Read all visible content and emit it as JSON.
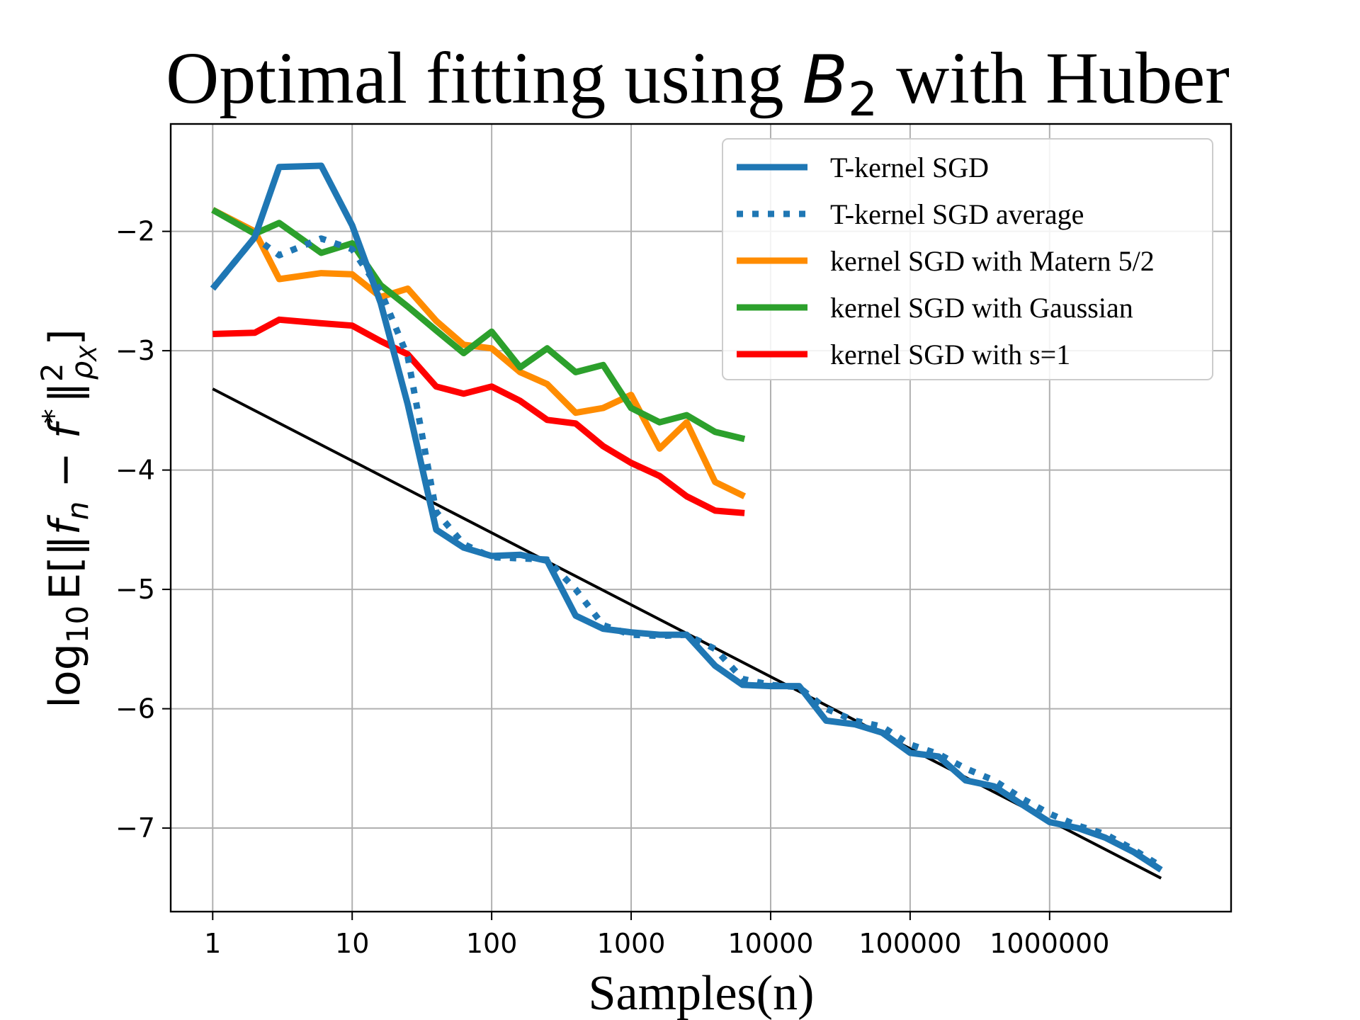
{
  "chart_data": {
    "type": "line",
    "title": {
      "prefix": "Optimal fitting using ",
      "math": "B",
      "math_subscript": "2",
      "suffix": " with Huber"
    },
    "xlabel": "Samples(n)",
    "ylabel": "log10 E[‖f_n − f*‖²_ρX]",
    "ylabel_parts": {
      "log": "log",
      "log_sub": "10",
      "E": "E",
      "bracket_open": "[",
      "norm_open": "‖",
      "f": "f",
      "f_sub": "n",
      "minus": " − ",
      "fstar": "f",
      "star": "*",
      "norm_close": "‖",
      "sq": "2",
      "rho": "ρ",
      "rho_sub": "X",
      "bracket_close": "]"
    },
    "x_scale": "log",
    "xlim": [
      0.5,
      20000000
    ],
    "ylim": [
      -7.7,
      -1.1
    ],
    "grid": true,
    "legend": "top-right",
    "x_ticks": [
      {
        "value": 1,
        "label": "1"
      },
      {
        "value": 10,
        "label": "10"
      },
      {
        "value": 100,
        "label": "100"
      },
      {
        "value": 1000,
        "label": "1000"
      },
      {
        "value": 10000,
        "label": "10000"
      },
      {
        "value": 100000,
        "label": "100000"
      },
      {
        "value": 1000000,
        "label": "1000000"
      }
    ],
    "y_ticks": [
      {
        "value": -2,
        "label": "−2"
      },
      {
        "value": -3,
        "label": "−3"
      },
      {
        "value": -4,
        "label": "−4"
      },
      {
        "value": -5,
        "label": "−5"
      },
      {
        "value": -6,
        "label": "−6"
      },
      {
        "value": -7,
        "label": "−7"
      }
    ],
    "series": [
      {
        "name": "T-kernel SGD",
        "color": "#1f77b4",
        "style": "solid",
        "points": [
          [
            1,
            -2.48
          ],
          [
            2,
            -2.05
          ],
          [
            3,
            -1.46
          ],
          [
            6,
            -1.45
          ],
          [
            10,
            -1.95
          ],
          [
            16,
            -2.6
          ],
          [
            25,
            -3.45
          ],
          [
            40,
            -4.5
          ],
          [
            63,
            -4.65
          ],
          [
            100,
            -4.72
          ],
          [
            160,
            -4.71
          ],
          [
            250,
            -4.76
          ],
          [
            400,
            -5.22
          ],
          [
            630,
            -5.33
          ],
          [
            1000,
            -5.36
          ],
          [
            1600,
            -5.38
          ],
          [
            2500,
            -5.38
          ],
          [
            4000,
            -5.64
          ],
          [
            6300,
            -5.8
          ],
          [
            10000,
            -5.81
          ],
          [
            16000,
            -5.81
          ],
          [
            25000,
            -6.1
          ],
          [
            40000,
            -6.13
          ],
          [
            63000,
            -6.2
          ],
          [
            100000,
            -6.37
          ],
          [
            160000,
            -6.4
          ],
          [
            250000,
            -6.6
          ],
          [
            400000,
            -6.65
          ],
          [
            630000,
            -6.8
          ],
          [
            1000000,
            -6.95
          ],
          [
            1600000,
            -7.0
          ],
          [
            2500000,
            -7.08
          ],
          [
            4000000,
            -7.2
          ],
          [
            6300000,
            -7.35
          ]
        ]
      },
      {
        "name": "T-kernel SGD average",
        "color": "#1f77b4",
        "style": "dotted",
        "points": [
          [
            1,
            -2.48
          ],
          [
            2,
            -2.05
          ],
          [
            3,
            -2.2
          ],
          [
            6,
            -2.06
          ],
          [
            10,
            -2.15
          ],
          [
            16,
            -2.5
          ],
          [
            25,
            -3.05
          ],
          [
            40,
            -4.35
          ],
          [
            63,
            -4.62
          ],
          [
            100,
            -4.73
          ],
          [
            160,
            -4.74
          ],
          [
            250,
            -4.75
          ],
          [
            400,
            -5.0
          ],
          [
            630,
            -5.3
          ],
          [
            1000,
            -5.38
          ],
          [
            1600,
            -5.39
          ],
          [
            2500,
            -5.38
          ],
          [
            4000,
            -5.5
          ],
          [
            6300,
            -5.75
          ],
          [
            10000,
            -5.8
          ],
          [
            16000,
            -5.82
          ],
          [
            25000,
            -6.0
          ],
          [
            40000,
            -6.1
          ],
          [
            63000,
            -6.15
          ],
          [
            100000,
            -6.3
          ],
          [
            160000,
            -6.38
          ],
          [
            250000,
            -6.5
          ],
          [
            400000,
            -6.6
          ],
          [
            630000,
            -6.75
          ],
          [
            1000000,
            -6.88
          ],
          [
            1600000,
            -6.98
          ],
          [
            2500000,
            -7.05
          ],
          [
            4000000,
            -7.18
          ],
          [
            6300000,
            -7.32
          ]
        ]
      },
      {
        "name": "kernel SGD with Matern 5/2",
        "color": "#ff8c00",
        "style": "solid",
        "points": [
          [
            1,
            -1.82
          ],
          [
            2,
            -2.0
          ],
          [
            3,
            -2.4
          ],
          [
            6,
            -2.35
          ],
          [
            10,
            -2.36
          ],
          [
            16,
            -2.55
          ],
          [
            25,
            -2.48
          ],
          [
            40,
            -2.75
          ],
          [
            63,
            -2.95
          ],
          [
            100,
            -2.98
          ],
          [
            160,
            -3.18
          ],
          [
            250,
            -3.28
          ],
          [
            400,
            -3.52
          ],
          [
            630,
            -3.48
          ],
          [
            1000,
            -3.37
          ],
          [
            1600,
            -3.82
          ],
          [
            2500,
            -3.6
          ],
          [
            4000,
            -4.1
          ],
          [
            6500,
            -4.22
          ]
        ]
      },
      {
        "name": "kernel SGD with Gaussian",
        "color": "#2ca02c",
        "style": "solid",
        "points": [
          [
            1,
            -1.82
          ],
          [
            2,
            -2.02
          ],
          [
            3,
            -1.93
          ],
          [
            6,
            -2.18
          ],
          [
            10,
            -2.1
          ],
          [
            16,
            -2.45
          ],
          [
            25,
            -2.63
          ],
          [
            40,
            -2.83
          ],
          [
            63,
            -3.02
          ],
          [
            100,
            -2.84
          ],
          [
            160,
            -3.14
          ],
          [
            250,
            -2.98
          ],
          [
            400,
            -3.18
          ],
          [
            630,
            -3.12
          ],
          [
            1000,
            -3.48
          ],
          [
            1600,
            -3.6
          ],
          [
            2500,
            -3.54
          ],
          [
            4000,
            -3.68
          ],
          [
            6500,
            -3.74
          ]
        ]
      },
      {
        "name": "kernel SGD with s=1",
        "color": "#ff0000",
        "style": "solid",
        "points": [
          [
            1,
            -2.86
          ],
          [
            2,
            -2.85
          ],
          [
            3,
            -2.74
          ],
          [
            6,
            -2.77
          ],
          [
            10,
            -2.79
          ],
          [
            16,
            -2.92
          ],
          [
            25,
            -3.03
          ],
          [
            40,
            -3.3
          ],
          [
            63,
            -3.36
          ],
          [
            100,
            -3.3
          ],
          [
            160,
            -3.42
          ],
          [
            250,
            -3.58
          ],
          [
            400,
            -3.61
          ],
          [
            630,
            -3.8
          ],
          [
            1000,
            -3.94
          ],
          [
            1600,
            -4.05
          ],
          [
            2500,
            -4.22
          ],
          [
            4000,
            -4.34
          ],
          [
            6500,
            -4.36
          ]
        ]
      },
      {
        "name": "",
        "color": "#000000",
        "style": "solid",
        "points": [
          [
            1,
            -3.32
          ],
          [
            6300000,
            -7.42
          ]
        ]
      }
    ]
  }
}
